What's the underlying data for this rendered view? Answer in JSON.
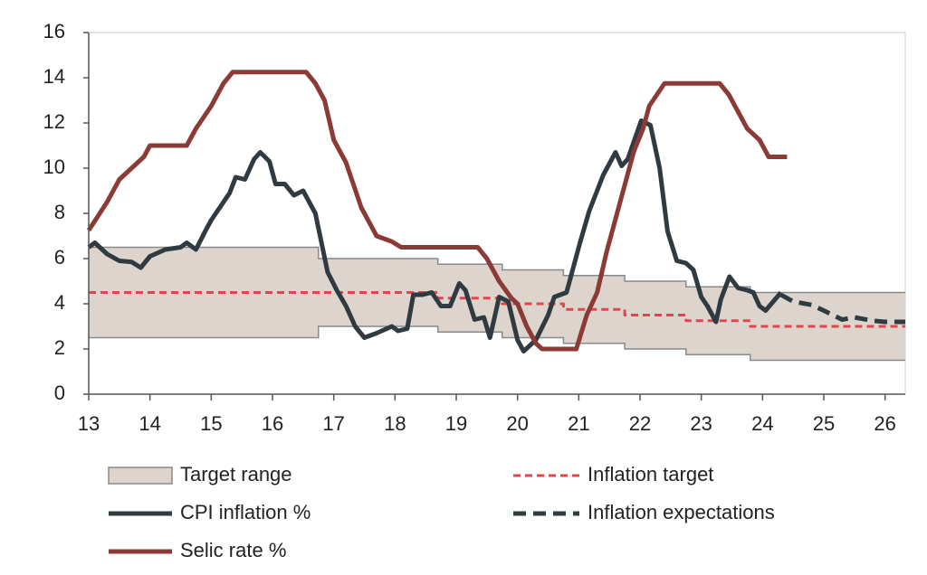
{
  "chart_data": {
    "type": "line",
    "xlim": [
      13,
      26.33
    ],
    "ylim": [
      0,
      16
    ],
    "xticks": [
      13,
      14,
      15,
      16,
      17,
      18,
      19,
      20,
      21,
      22,
      23,
      24,
      25,
      26
    ],
    "yticks": [
      0,
      2,
      4,
      6,
      8,
      10,
      12,
      14,
      16
    ],
    "series": [
      {
        "name": "Target range",
        "kind": "band",
        "color": "#ddd5cd",
        "edge_color": "#8a8a8a",
        "x": [
          13,
          16.75,
          16.75,
          18.7,
          18.7,
          19.75,
          19.75,
          20.75,
          20.75,
          21.75,
          21.75,
          22.75,
          22.75,
          23.8,
          23.8,
          26.33
        ],
        "high": [
          6.5,
          6.5,
          6,
          6,
          5.75,
          5.75,
          5.5,
          5.5,
          5.25,
          5.25,
          5,
          5,
          4.75,
          4.75,
          4.5,
          4.5
        ],
        "low": [
          2.5,
          2.5,
          3,
          3,
          2.75,
          2.75,
          2.5,
          2.5,
          2.25,
          2.25,
          2,
          2,
          1.75,
          1.75,
          1.5,
          1.5
        ]
      },
      {
        "name": "Inflation target",
        "kind": "line",
        "dash": "short",
        "color": "#e0474c",
        "x": [
          13,
          18.7,
          18.7,
          19.75,
          19.75,
          20.75,
          20.75,
          21.75,
          21.75,
          22.75,
          22.75,
          23.8,
          23.8,
          26.33
        ],
        "values": [
          4.5,
          4.5,
          4.25,
          4.25,
          4,
          4,
          3.75,
          3.75,
          3.5,
          3.5,
          3.25,
          3.25,
          3,
          3
        ]
      },
      {
        "name": "CPI inflation %",
        "kind": "line",
        "color": "#2f3b40",
        "x": [
          13,
          13.1,
          13.3,
          13.5,
          13.7,
          13.85,
          14,
          14.25,
          14.5,
          14.6,
          14.75,
          14.9,
          15,
          15.1,
          15.3,
          15.4,
          15.55,
          15.7,
          15.8,
          15.95,
          16.05,
          16.2,
          16.35,
          16.5,
          16.7,
          16.9,
          17.05,
          17.2,
          17.35,
          17.5,
          17.7,
          17.95,
          18.05,
          18.2,
          18.3,
          18.45,
          18.6,
          18.75,
          18.9,
          19.05,
          19.15,
          19.3,
          19.45,
          19.55,
          19.7,
          19.85,
          20,
          20.1,
          20.3,
          20.5,
          20.6,
          20.8,
          21.02,
          21.17,
          21.4,
          21.6,
          21.7,
          21.8,
          22.02,
          22.17,
          22.32,
          22.45,
          22.6,
          22.75,
          22.87,
          23,
          23.1,
          23.24,
          23.32,
          23.46,
          23.6,
          23.75,
          23.85,
          23.95,
          24.05,
          24.3
        ],
        "values": [
          6.5,
          6.7,
          6.2,
          5.9,
          5.85,
          5.6,
          6.1,
          6.4,
          6.5,
          6.7,
          6.4,
          7.2,
          7.7,
          8.1,
          8.9,
          9.6,
          9.5,
          10.4,
          10.7,
          10.3,
          9.3,
          9.3,
          8.8,
          9.0,
          8.0,
          5.4,
          4.6,
          3.9,
          3.0,
          2.5,
          2.7,
          3.0,
          2.8,
          2.9,
          4.4,
          4.4,
          4.5,
          3.9,
          3.9,
          4.9,
          4.6,
          3.3,
          3.4,
          2.5,
          4.3,
          4.1,
          2.4,
          1.9,
          2.4,
          3.5,
          4.3,
          4.5,
          6.7,
          8.1,
          9.7,
          10.7,
          10.1,
          10.4,
          12.1,
          11.9,
          10.0,
          7.2,
          5.9,
          5.8,
          5.5,
          4.3,
          3.9,
          3.2,
          4.2,
          5.2,
          4.7,
          4.6,
          4.5,
          3.9,
          3.7,
          4.5
        ]
      },
      {
        "name": "Inflation expectations",
        "kind": "line",
        "dash": "long",
        "color": "#2f3b40",
        "x": [
          24.3,
          24.5,
          24.8,
          25,
          25.3,
          25.5,
          25.8,
          26,
          26.33
        ],
        "values": [
          4.4,
          4.1,
          3.95,
          3.7,
          3.3,
          3.4,
          3.25,
          3.2,
          3.2
        ]
      },
      {
        "name": "Selic rate %",
        "kind": "line",
        "color": "#8b3a36",
        "x": [
          13,
          13.3,
          13.5,
          13.7,
          13.9,
          14,
          14.6,
          14.75,
          15,
          15.2,
          15.35,
          16.55,
          16.7,
          16.85,
          17,
          17.2,
          17.45,
          17.7,
          17.95,
          18.1,
          19.35,
          19.5,
          19.7,
          19.9,
          20,
          20.15,
          20.3,
          20.4,
          20.96,
          21.13,
          21.3,
          21.45,
          21.75,
          21.9,
          22.05,
          22.15,
          22.4,
          23.3,
          23.45,
          23.75,
          23.95,
          24.1,
          24.4
        ],
        "values": [
          7.25,
          8.5,
          9.5,
          10,
          10.5,
          11,
          11,
          11.75,
          12.75,
          13.75,
          14.25,
          14.25,
          13.75,
          13,
          11.25,
          10.25,
          8.25,
          7,
          6.75,
          6.5,
          6.5,
          6,
          5,
          4.25,
          4,
          3,
          2.25,
          2,
          2,
          3.5,
          4.5,
          6.25,
          9.25,
          10.75,
          11.75,
          12.75,
          13.75,
          13.75,
          13.25,
          11.75,
          11.25,
          10.5,
          10.5
        ]
      }
    ]
  }
}
